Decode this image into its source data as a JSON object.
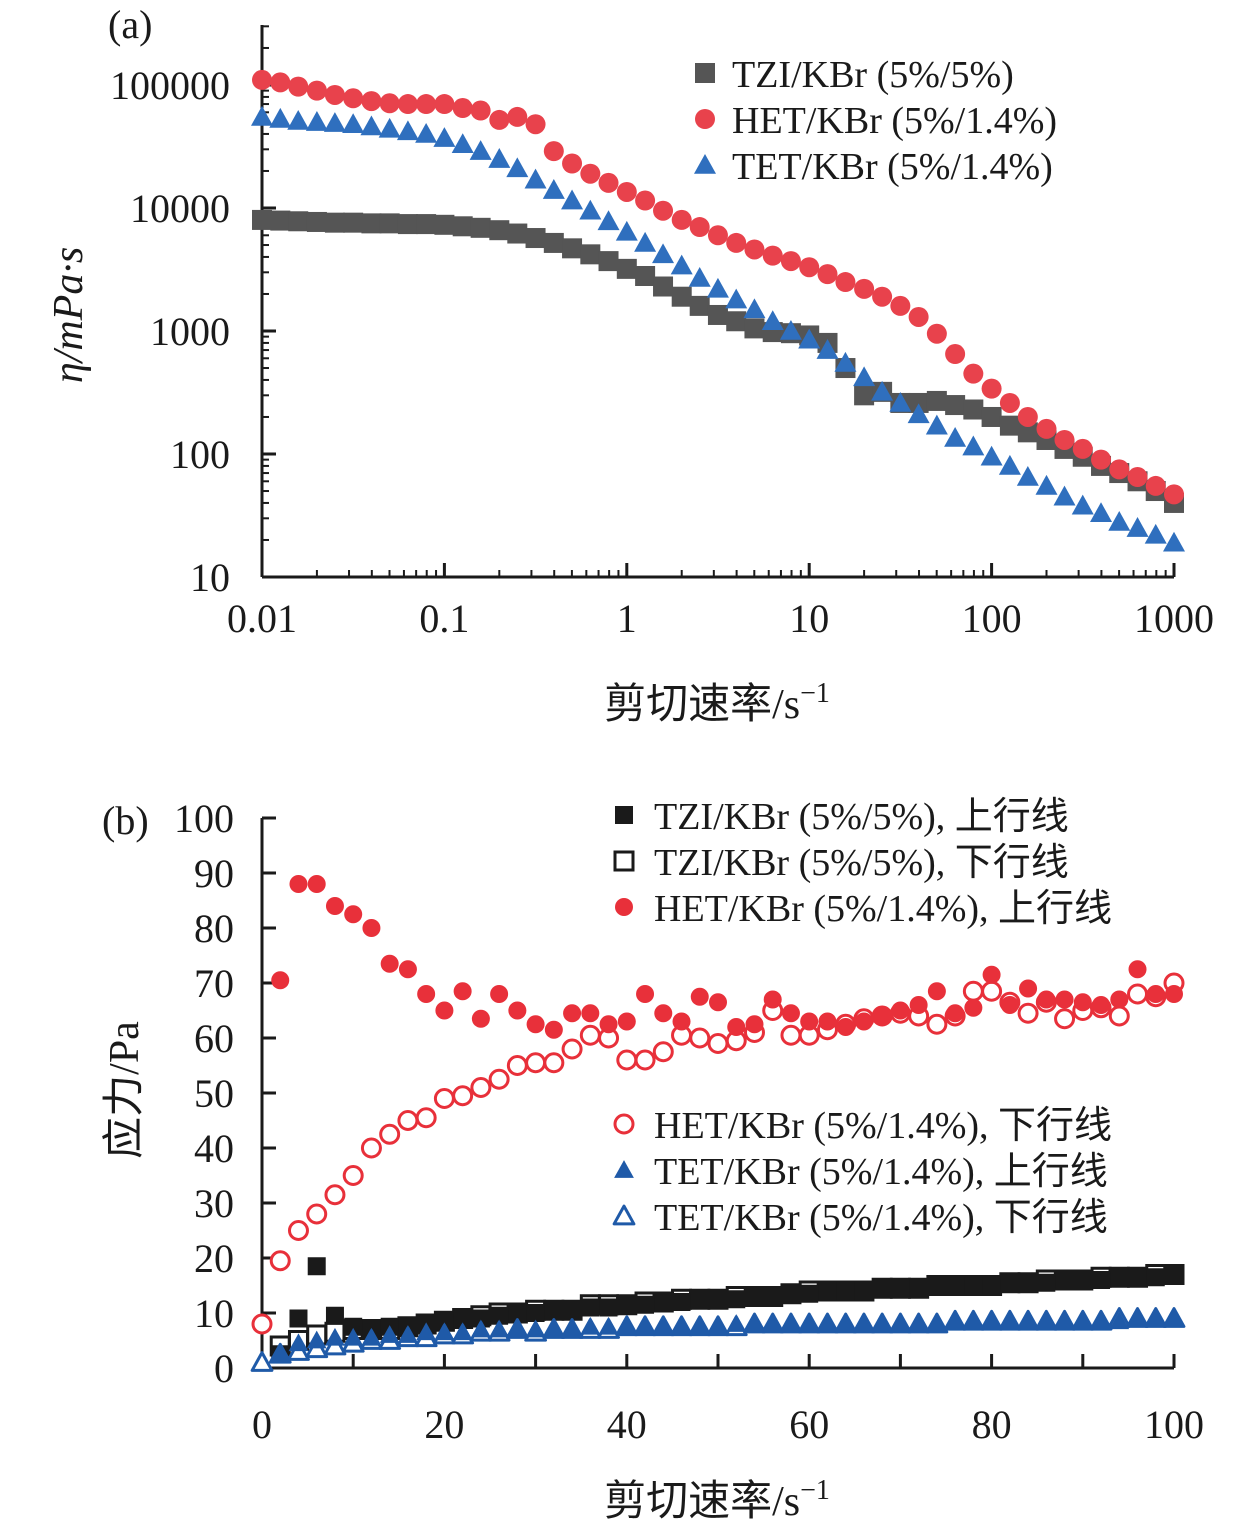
{
  "chart_data": [
    {
      "type": "scatter",
      "panel_label": "(a)",
      "x_scale": "log",
      "y_scale": "log",
      "xlabel": "剪切速率/s",
      "xlabel_sup": "−1",
      "ylabel": "η/mPa·s",
      "xlim": [
        0.01,
        1000
      ],
      "ylim": [
        10,
        100000
      ],
      "x_ticks": [
        0.01,
        0.1,
        1,
        10,
        100,
        1000
      ],
      "x_tick_labels": [
        "0.01",
        "0.1",
        "1",
        "10",
        "100",
        "1000"
      ],
      "y_ticks": [
        10,
        100,
        1000,
        10000,
        100000
      ],
      "y_tick_labels": [
        "10",
        "100",
        "1000",
        "10000",
        "100000"
      ],
      "legend_position": "top-right",
      "grid": false,
      "series": [
        {
          "name": "TZI/KBr (5%/5%)",
          "marker": "square",
          "color": "#555555",
          "filled": true,
          "x": [
            0.01,
            0.0126,
            0.0158,
            0.02,
            0.0251,
            0.0316,
            0.0398,
            0.0501,
            0.0631,
            0.0794,
            0.1,
            0.126,
            0.158,
            0.2,
            0.251,
            0.316,
            0.398,
            0.501,
            0.631,
            0.794,
            1,
            1.26,
            1.58,
            2,
            2.51,
            3.16,
            3.98,
            5.01,
            6.31,
            7.94,
            10,
            12.6,
            15.8,
            20,
            25.1,
            31.6,
            39.8,
            50.1,
            63.1,
            79.4,
            100,
            126,
            158,
            200,
            251,
            316,
            398,
            501,
            631,
            794,
            1000
          ],
          "y": [
            8000,
            7900,
            7800,
            7700,
            7600,
            7600,
            7500,
            7500,
            7400,
            7400,
            7300,
            7100,
            6900,
            6600,
            6200,
            5700,
            5200,
            4700,
            4200,
            3700,
            3200,
            2800,
            2300,
            1900,
            1600,
            1350,
            1200,
            1050,
            980,
            960,
            920,
            800,
            500,
            300,
            320,
            260,
            260,
            270,
            250,
            230,
            200,
            170,
            150,
            130,
            110,
            95,
            80,
            70,
            60,
            50,
            40
          ]
        },
        {
          "name": "HET/KBr (5%/1.4%)",
          "marker": "circle",
          "color": "#e8424c",
          "filled": true,
          "x": [
            0.01,
            0.0126,
            0.0158,
            0.02,
            0.0251,
            0.0316,
            0.0398,
            0.0501,
            0.0631,
            0.0794,
            0.1,
            0.126,
            0.158,
            0.2,
            0.251,
            0.316,
            0.398,
            0.501,
            0.631,
            0.794,
            1,
            1.26,
            1.58,
            2,
            2.51,
            3.16,
            3.98,
            5.01,
            6.31,
            7.94,
            10,
            12.6,
            15.8,
            20,
            25.1,
            31.6,
            39.8,
            50.1,
            63.1,
            79.4,
            100,
            126,
            158,
            200,
            251,
            316,
            398,
            501,
            631,
            794,
            1000
          ],
          "y": [
            110000,
            105000,
            97000,
            90000,
            83000,
            78000,
            74000,
            71000,
            70000,
            70000,
            70000,
            65000,
            62000,
            52000,
            55000,
            48000,
            29000,
            23000,
            19000,
            16000,
            13500,
            11500,
            9500,
            8000,
            7000,
            6000,
            5200,
            4600,
            4100,
            3700,
            3300,
            2900,
            2500,
            2200,
            1900,
            1600,
            1300,
            950,
            650,
            450,
            340,
            260,
            200,
            160,
            130,
            110,
            90,
            75,
            65,
            55,
            47
          ]
        },
        {
          "name": "TET/KBr (5%/1.4%)",
          "marker": "triangle",
          "color": "#2f6fbe",
          "filled": true,
          "x": [
            0.01,
            0.0126,
            0.0158,
            0.02,
            0.0251,
            0.0316,
            0.0398,
            0.0501,
            0.0631,
            0.0794,
            0.1,
            0.126,
            0.158,
            0.2,
            0.251,
            0.316,
            0.398,
            0.501,
            0.631,
            0.794,
            1,
            1.26,
            1.58,
            2,
            2.51,
            3.16,
            3.98,
            5.01,
            6.31,
            7.94,
            10,
            12.6,
            15.8,
            20,
            25.1,
            31.6,
            39.8,
            50.1,
            63.1,
            79.4,
            100,
            126,
            158,
            200,
            251,
            316,
            398,
            501,
            631,
            794,
            1000
          ],
          "y": [
            55000,
            53000,
            51000,
            50000,
            49000,
            48000,
            46000,
            44000,
            42000,
            40000,
            37000,
            33000,
            29000,
            25000,
            21000,
            17000,
            14000,
            11500,
            9500,
            7800,
            6400,
            5200,
            4200,
            3400,
            2700,
            2200,
            1800,
            1500,
            1200,
            1000,
            850,
            700,
            550,
            420,
            320,
            260,
            210,
            170,
            135,
            115,
            95,
            80,
            65,
            55,
            45,
            38,
            33,
            28,
            25,
            22,
            19
          ]
        }
      ]
    },
    {
      "type": "scatter",
      "panel_label": "(b)",
      "x_scale": "linear",
      "y_scale": "linear",
      "xlabel": "剪切速率/s",
      "xlabel_sup": "−1",
      "ylabel": "应力/Pa",
      "xlim": [
        0,
        100
      ],
      "ylim": [
        0,
        100
      ],
      "x_ticks": [
        0,
        20,
        40,
        60,
        80,
        100
      ],
      "x_tick_labels": [
        "0",
        "20",
        "40",
        "60",
        "80",
        "100"
      ],
      "y_ticks": [
        0,
        10,
        20,
        30,
        40,
        50,
        60,
        70,
        80,
        90,
        100
      ],
      "y_tick_labels": [
        "0",
        "10",
        "20",
        "30",
        "40",
        "50",
        "60",
        "70",
        "80",
        "90",
        "100"
      ],
      "legend_position": "top-right and middle-right",
      "grid": false,
      "series": [
        {
          "name": "TZI/KBr (5%/5%), 上行线",
          "marker": "square",
          "color": "#1a1a1a",
          "filled": true,
          "x": [
            2,
            4,
            6,
            8,
            10,
            12,
            14,
            16,
            18,
            20,
            22,
            24,
            26,
            28,
            30,
            32,
            34,
            36,
            38,
            40,
            42,
            44,
            46,
            48,
            50,
            52,
            54,
            56,
            58,
            60,
            62,
            64,
            66,
            68,
            70,
            72,
            74,
            76,
            78,
            80,
            82,
            84,
            86,
            88,
            90,
            92,
            94,
            96,
            98,
            100
          ],
          "y": [
            2.5,
            9,
            18.5,
            9.5,
            7.5,
            7,
            7.5,
            7.5,
            8,
            8.5,
            9,
            9,
            9.5,
            10,
            10,
            10.5,
            10.5,
            11,
            11,
            11.5,
            11.5,
            12,
            12,
            12.5,
            12.5,
            12.5,
            13,
            13,
            13.5,
            13.5,
            14,
            14,
            14,
            14.5,
            14.5,
            14.5,
            15,
            15,
            15,
            15,
            15.5,
            15.5,
            15.5,
            16,
            16,
            16,
            16.5,
            16.5,
            16.5,
            17
          ]
        },
        {
          "name": "TZI/KBr (5%/5%), 下行线",
          "marker": "square",
          "color": "#1a1a1a",
          "filled": false,
          "x": [
            2,
            4,
            6,
            8,
            10,
            12,
            14,
            16,
            18,
            20,
            22,
            24,
            26,
            28,
            30,
            32,
            34,
            36,
            38,
            40,
            42,
            44,
            46,
            48,
            50,
            52,
            54,
            56,
            58,
            60,
            62,
            64,
            66,
            68,
            70,
            72,
            74,
            76,
            78,
            80,
            82,
            84,
            86,
            88,
            90,
            92,
            94,
            96,
            98,
            100
          ],
          "y": [
            4,
            5,
            6,
            6.5,
            7,
            7,
            7,
            7.5,
            8,
            8.5,
            9,
            9.5,
            10,
            10,
            10.5,
            10.5,
            10.5,
            11.5,
            11.5,
            11.5,
            12,
            12,
            12.5,
            12.5,
            12.5,
            13,
            13,
            13,
            13.5,
            14,
            14,
            14,
            14,
            14.5,
            14.5,
            14.5,
            15,
            15,
            15,
            15,
            15.5,
            15.5,
            16,
            16,
            16,
            16.5,
            16.5,
            16.5,
            17,
            17
          ]
        },
        {
          "name": "HET/KBr (5%/1.4%), 上行线",
          "marker": "circle",
          "color": "#e8303a",
          "filled": true,
          "x": [
            2,
            4,
            6,
            8,
            10,
            12,
            14,
            16,
            18,
            20,
            22,
            24,
            26,
            28,
            30,
            32,
            34,
            36,
            38,
            40,
            42,
            44,
            46,
            48,
            50,
            52,
            54,
            56,
            58,
            60,
            62,
            64,
            66,
            68,
            70,
            72,
            74,
            76,
            78,
            80,
            82,
            84,
            86,
            88,
            90,
            92,
            94,
            96,
            98,
            100
          ],
          "y": [
            70.5,
            88,
            88,
            84,
            82.5,
            80,
            73.5,
            72.5,
            68,
            65,
            68.5,
            63.5,
            68,
            65,
            62.5,
            61.5,
            64.5,
            64.5,
            62.5,
            63,
            68,
            64.5,
            63,
            67.5,
            66.5,
            62,
            62.5,
            67,
            64.5,
            63,
            63,
            62,
            63,
            64,
            65,
            66,
            68.5,
            64.5,
            65.5,
            71.5,
            66,
            69,
            67,
            67,
            66.5,
            66,
            67,
            72.5,
            68,
            68
          ]
        },
        {
          "name": "HET/KBr (5%/1.4%), 下行线",
          "marker": "circle",
          "color": "#e8303a",
          "filled": false,
          "x": [
            0,
            2,
            4,
            6,
            8,
            10,
            12,
            14,
            16,
            18,
            20,
            22,
            24,
            26,
            28,
            30,
            32,
            34,
            36,
            38,
            40,
            42,
            44,
            46,
            48,
            50,
            52,
            54,
            56,
            58,
            60,
            62,
            64,
            66,
            68,
            70,
            72,
            74,
            76,
            78,
            80,
            82,
            84,
            86,
            88,
            90,
            92,
            94,
            96,
            98,
            100
          ],
          "y": [
            8,
            19.5,
            25,
            28,
            31.5,
            35,
            40,
            42.5,
            45,
            45.5,
            49,
            49.5,
            51,
            52.5,
            55,
            55.5,
            55.5,
            58,
            60.5,
            60,
            56,
            56,
            57.5,
            60.5,
            60,
            59,
            59.5,
            61,
            65,
            60.5,
            60.5,
            61.5,
            62.5,
            63.5,
            64,
            64.5,
            64,
            62.5,
            64,
            68.5,
            68.5,
            66.5,
            64.5,
            66.5,
            63.5,
            65,
            65.5,
            64,
            68,
            67.5,
            70
          ]
        },
        {
          "name": "TET/KBr (5%/1.4%), 上行线",
          "marker": "triangle",
          "color": "#1f5aa8",
          "filled": true,
          "x": [
            2,
            4,
            6,
            8,
            10,
            12,
            14,
            16,
            18,
            20,
            22,
            24,
            26,
            28,
            30,
            32,
            34,
            36,
            38,
            40,
            42,
            44,
            46,
            48,
            50,
            52,
            54,
            56,
            58,
            60,
            62,
            64,
            66,
            68,
            70,
            72,
            74,
            76,
            78,
            80,
            82,
            84,
            86,
            88,
            90,
            92,
            94,
            96,
            98,
            100
          ],
          "y": [
            2.5,
            4.5,
            5,
            5.5,
            5.5,
            5.5,
            6,
            6,
            6.5,
            6.5,
            6.5,
            7,
            7,
            7,
            7,
            7,
            7,
            7.5,
            7.5,
            7.5,
            7.5,
            7.5,
            7.5,
            7.5,
            7.5,
            8,
            8,
            8,
            8,
            8,
            8,
            8,
            8,
            8,
            8,
            8,
            8,
            8.5,
            8.5,
            8.5,
            8.5,
            8.5,
            8.5,
            8.5,
            8.5,
            8.5,
            8.5,
            9,
            9,
            9
          ]
        },
        {
          "name": "TET/KBr (5%/1.4%), 下行线",
          "marker": "triangle",
          "color": "#1f5aa8",
          "filled": false,
          "x": [
            0,
            2,
            4,
            6,
            8,
            10,
            12,
            14,
            16,
            18,
            20,
            22,
            24,
            26,
            28,
            30,
            32,
            34,
            36,
            38,
            40,
            42,
            44,
            46,
            48,
            50,
            52,
            54,
            56,
            58,
            60,
            62,
            64,
            66,
            68,
            70,
            72,
            74,
            76,
            78,
            80,
            82,
            84,
            86,
            88,
            90,
            92,
            94,
            96,
            98,
            100
          ],
          "y": [
            1,
            2.5,
            3,
            3.5,
            4,
            4.5,
            5,
            5,
            5.5,
            5.5,
            6,
            6,
            6.5,
            6.5,
            7,
            6.5,
            7,
            7,
            7,
            7,
            7.5,
            7.5,
            7.5,
            7.5,
            7.5,
            7.5,
            7.5,
            8,
            8,
            8,
            8,
            8,
            8,
            8,
            8,
            8,
            8,
            8,
            8.5,
            8.5,
            8.5,
            8.5,
            8.5,
            8.5,
            8.5,
            8.5,
            8.5,
            9,
            9,
            9,
            9
          ]
        }
      ]
    }
  ]
}
